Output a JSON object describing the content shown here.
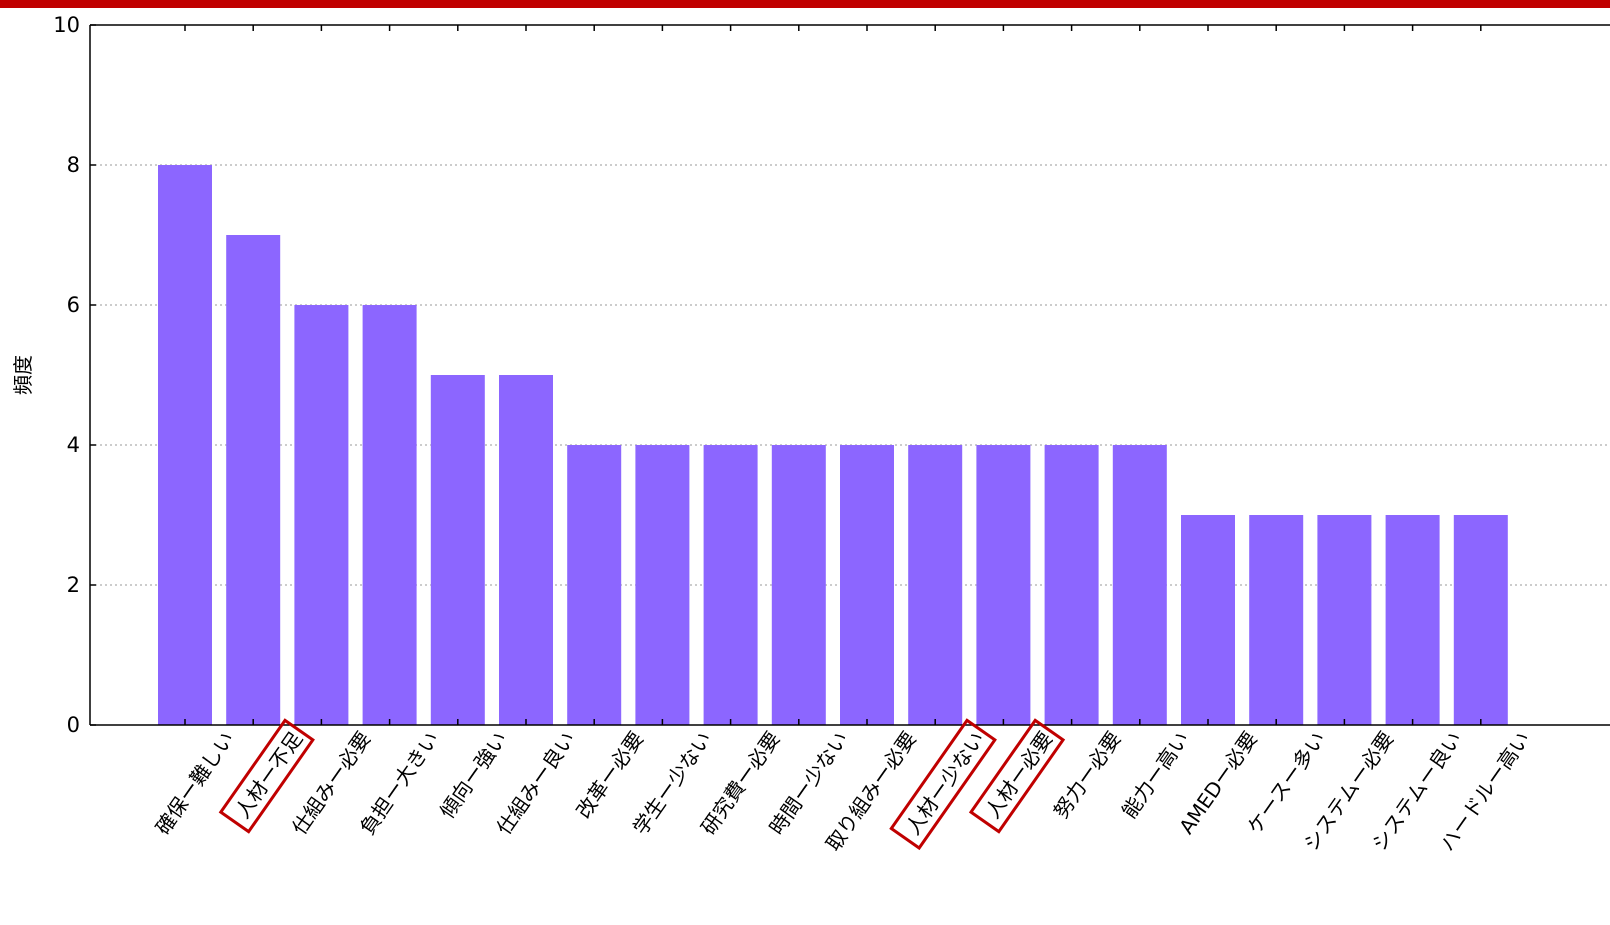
{
  "colors": {
    "bar": "#8c66ff",
    "highlight": "#c00000",
    "top_bar": "#c00000",
    "axis": "#000000",
    "grid": "#999999"
  },
  "chart_data": {
    "type": "bar",
    "ylabel": "頻度",
    "xlabel": "",
    "ylim": [
      0,
      10
    ],
    "yticks": [
      0,
      2,
      4,
      6,
      8,
      10
    ],
    "grid": "horizontal dotted",
    "categories": [
      "確保ー難しい",
      "人材ー不足",
      "仕組みー必要",
      "負担ー大きい",
      "傾向ー強い",
      "仕組みー良い",
      "改革ー必要",
      "学生ー少ない",
      "研究費ー必要",
      "時間ー少ない",
      "取り組みー必要",
      "人材ー少ない",
      "人材ー必要",
      "努力ー必要",
      "能力ー高い",
      "AMEDー必要",
      "ケースー多い",
      "システムー必要",
      "システムー良い",
      "ハードルー高い"
    ],
    "values": [
      8,
      7,
      6,
      6,
      5,
      5,
      4,
      4,
      4,
      4,
      4,
      4,
      4,
      4,
      4,
      3,
      3,
      3,
      3,
      3
    ],
    "highlighted": [
      "人材ー不足",
      "人材ー少ない",
      "人材ー必要"
    ]
  }
}
